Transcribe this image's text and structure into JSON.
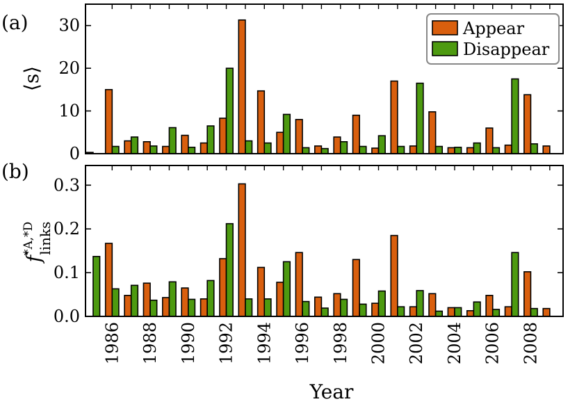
{
  "colors": {
    "appear": "#d95f0e",
    "disappear": "#4d9a10"
  },
  "chart_data": [
    {
      "type": "bar",
      "panel_label": "(a)",
      "ylabel_main": "⟨s⟩",
      "ylabel_sub": "",
      "ylim": [
        0,
        35
      ],
      "yticks": [
        0,
        10,
        20,
        30
      ],
      "ytick_labels": [
        "0",
        "10",
        "20",
        "30"
      ],
      "x": [
        1985,
        1986,
        1987,
        1988,
        1989,
        1990,
        1991,
        1992,
        1993,
        1994,
        1995,
        1996,
        1997,
        1998,
        1999,
        2000,
        2001,
        2002,
        2003,
        2004,
        2005,
        2006,
        2007,
        2008,
        2009
      ],
      "series": [
        {
          "name": "Appear",
          "values": [
            0.3,
            15.0,
            3.0,
            2.8,
            1.7,
            4.3,
            2.5,
            8.3,
            31.3,
            14.7,
            5.0,
            8.0,
            1.8,
            3.9,
            9.0,
            1.3,
            17.0,
            1.8,
            9.8,
            1.4,
            1.4,
            6.0,
            2.0,
            13.8,
            1.8
          ]
        },
        {
          "name": "Disappear",
          "values": [
            null,
            1.7,
            3.9,
            1.8,
            6.1,
            1.5,
            6.5,
            20.0,
            3.0,
            2.5,
            9.2,
            1.4,
            1.2,
            2.8,
            1.7,
            4.2,
            1.7,
            16.5,
            1.7,
            1.5,
            2.5,
            1.4,
            17.5,
            2.3,
            null
          ]
        }
      ],
      "legend": {
        "position": "top-right"
      }
    },
    {
      "type": "bar",
      "panel_label": "(b)",
      "ylabel_main": "f",
      "ylabel_sup": "*A,*D",
      "ylabel_sub": "links",
      "ylim": [
        0,
        0.345
      ],
      "yticks": [
        0,
        0.1,
        0.2,
        0.3
      ],
      "ytick_labels": [
        "0.0",
        "0.1",
        "0.2",
        "0.3"
      ],
      "xlabel": "Year",
      "xtick_years": [
        1986,
        1988,
        1990,
        1992,
        1994,
        1996,
        1998,
        2000,
        2002,
        2004,
        2006,
        2008
      ],
      "xtick_labels": [
        "1986",
        "1988",
        "1990",
        "1992",
        "1994",
        "1996",
        "1998",
        "2000",
        "2002",
        "2004",
        "2006",
        "2008"
      ],
      "x": [
        1985,
        1986,
        1987,
        1988,
        1989,
        1990,
        1991,
        1992,
        1993,
        1994,
        1995,
        1996,
        1997,
        1998,
        1999,
        2000,
        2001,
        2002,
        2003,
        2004,
        2005,
        2006,
        2007,
        2008,
        2009
      ],
      "series": [
        {
          "name": "Appear",
          "values": [
            null,
            0.167,
            0.048,
            0.076,
            0.043,
            0.065,
            0.04,
            0.132,
            0.303,
            0.112,
            0.078,
            0.146,
            0.044,
            0.052,
            0.13,
            0.03,
            0.185,
            0.022,
            0.052,
            0.02,
            0.013,
            0.048,
            0.022,
            0.102,
            0.018
          ]
        },
        {
          "name": "Disappear",
          "values": [
            0.137,
            0.063,
            0.071,
            0.037,
            0.079,
            0.039,
            0.082,
            0.212,
            0.04,
            0.04,
            0.125,
            0.034,
            0.019,
            0.039,
            0.028,
            0.058,
            0.022,
            0.059,
            0.012,
            0.02,
            0.033,
            0.016,
            0.146,
            0.018,
            null
          ]
        }
      ]
    }
  ]
}
